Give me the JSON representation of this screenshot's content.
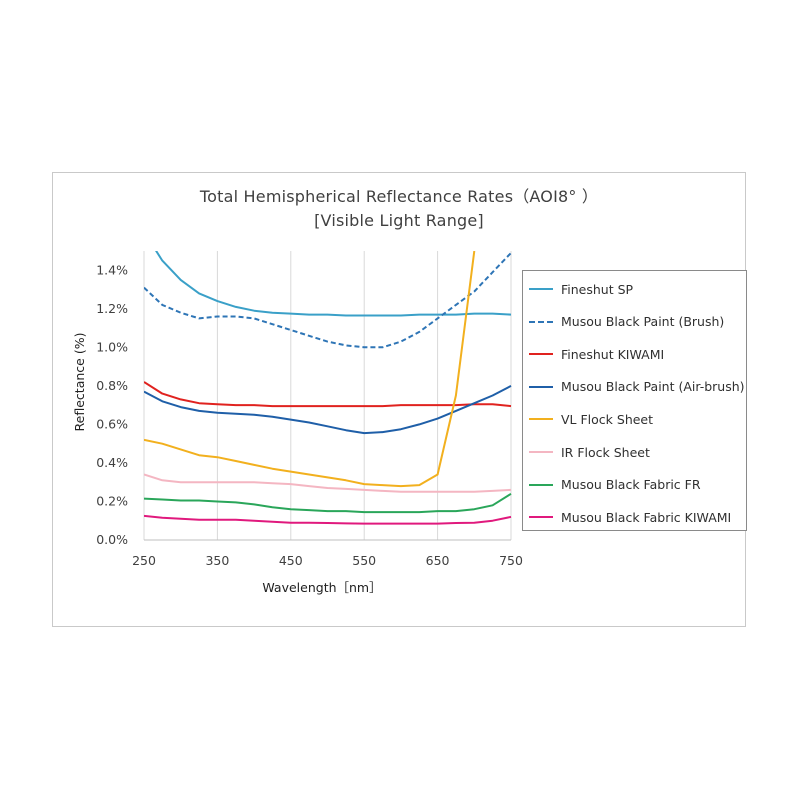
{
  "chart_data": {
    "type": "line",
    "title": "Total Hemispherical Reflectance Rates（AOI8° ）",
    "subtitle": "[Visible Light Range]",
    "xlabel": "Wavelength［nm］",
    "ylabel": "Reflectance (%)",
    "xlim": [
      250,
      750
    ],
    "ylim": [
      0,
      1.5
    ],
    "x_ticks": [
      "250",
      "350",
      "450",
      "550",
      "650",
      "750"
    ],
    "y_ticks": [
      "0.0%",
      "0.2%",
      "0.4%",
      "0.6%",
      "0.8%",
      "1.0%",
      "1.2%",
      "1.4%"
    ],
    "grid": "vertical",
    "legend_position": "right",
    "x": [
      250,
      275,
      300,
      325,
      350,
      375,
      400,
      425,
      450,
      475,
      500,
      525,
      550,
      575,
      600,
      625,
      650,
      675,
      700,
      725,
      750
    ],
    "series": [
      {
        "name": "Fineshut SP",
        "color": "#3aa0c8",
        "style": "solid",
        "values": [
          1.6,
          1.45,
          1.35,
          1.28,
          1.24,
          1.21,
          1.19,
          1.18,
          1.175,
          1.17,
          1.17,
          1.165,
          1.165,
          1.165,
          1.165,
          1.17,
          1.17,
          1.17,
          1.175,
          1.175,
          1.17
        ]
      },
      {
        "name": "Musou Black Paint (Brush)",
        "color": "#2e75b6",
        "style": "dashed",
        "values": [
          1.31,
          1.22,
          1.18,
          1.15,
          1.16,
          1.16,
          1.15,
          1.12,
          1.09,
          1.06,
          1.03,
          1.01,
          1.0,
          1.0,
          1.03,
          1.08,
          1.15,
          1.22,
          1.29,
          1.39,
          1.49
        ]
      },
      {
        "name": "Fineshut KIWAMI",
        "color": "#e0221f",
        "style": "solid",
        "values": [
          0.82,
          0.76,
          0.73,
          0.71,
          0.705,
          0.7,
          0.7,
          0.695,
          0.695,
          0.695,
          0.695,
          0.695,
          0.695,
          0.695,
          0.7,
          0.7,
          0.7,
          0.7,
          0.705,
          0.705,
          0.695
        ]
      },
      {
        "name": "Musou Black Paint (Air-brush)",
        "color": "#1f5fa8",
        "style": "solid",
        "values": [
          0.77,
          0.72,
          0.69,
          0.67,
          0.66,
          0.655,
          0.65,
          0.64,
          0.625,
          0.61,
          0.59,
          0.57,
          0.555,
          0.56,
          0.575,
          0.6,
          0.63,
          0.67,
          0.71,
          0.75,
          0.8
        ]
      },
      {
        "name": "VL Flock Sheet",
        "color": "#f2b01e",
        "style": "solid",
        "values": [
          0.52,
          0.5,
          0.47,
          0.44,
          0.43,
          0.41,
          0.39,
          0.37,
          0.355,
          0.34,
          0.325,
          0.31,
          0.29,
          0.285,
          0.28,
          0.285,
          0.34,
          0.75,
          1.5,
          null,
          null
        ]
      },
      {
        "name": "IR Flock Sheet",
        "color": "#f4b6c2",
        "style": "solid",
        "values": [
          0.34,
          0.31,
          0.3,
          0.3,
          0.3,
          0.3,
          0.3,
          0.295,
          0.29,
          0.28,
          0.27,
          0.265,
          0.26,
          0.255,
          0.25,
          0.25,
          0.25,
          0.25,
          0.25,
          0.255,
          0.26
        ]
      },
      {
        "name": "Musou Black Fabric FR",
        "color": "#2aa65a",
        "style": "solid",
        "values": [
          0.215,
          0.21,
          0.205,
          0.205,
          0.2,
          0.195,
          0.185,
          0.17,
          0.16,
          0.155,
          0.15,
          0.15,
          0.145,
          0.145,
          0.145,
          0.145,
          0.15,
          0.15,
          0.16,
          0.18,
          0.24
        ]
      },
      {
        "name": "Musou Black Fabric KIWAMI",
        "color": "#e0197d",
        "style": "solid",
        "values": [
          0.125,
          0.115,
          0.11,
          0.105,
          0.105,
          0.105,
          0.1,
          0.095,
          0.09,
          0.09,
          0.088,
          0.086,
          0.085,
          0.085,
          0.085,
          0.085,
          0.085,
          0.088,
          0.09,
          0.1,
          0.12
        ]
      }
    ]
  }
}
